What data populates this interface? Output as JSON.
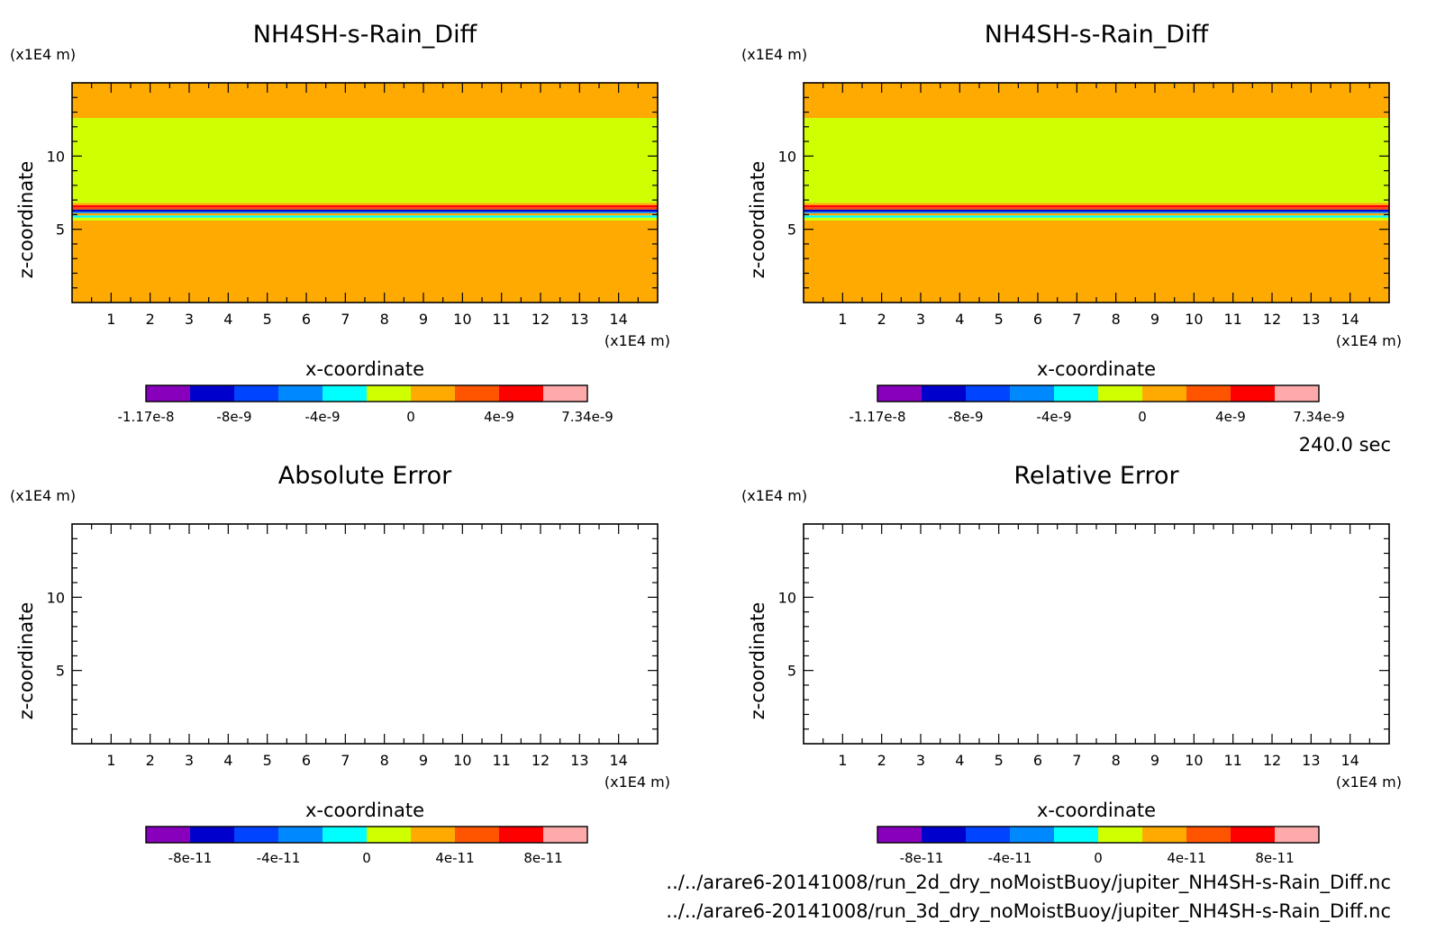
{
  "time_label": "240.0 sec",
  "files": [
    "../../arare6-20141008/run_2d_dry_noMoistBuoy/jupiter_NH4SH-s-Rain_Diff.nc",
    "../../arare6-20141008/run_3d_dry_noMoistBuoy/jupiter_NH4SH-s-Rain_Diff.nc"
  ],
  "chart_data": [
    {
      "type": "heatmap",
      "title": "NH4SH-s-Rain_Diff",
      "xlabel": "x-coordinate",
      "ylabel": "z-coordinate",
      "x_unit": "(x1E4 m)",
      "y_unit": "(x1E4 m)",
      "xlim": [
        0,
        15
      ],
      "ylim": [
        0,
        15
      ],
      "xticks": [
        1,
        2,
        3,
        4,
        5,
        6,
        7,
        8,
        9,
        10,
        11,
        12,
        13,
        14
      ],
      "yticks": [
        5,
        10
      ],
      "bands": [
        {
          "z0": 0,
          "z1": 5.6,
          "color": "#ffaa00",
          "value": "0 to 2e-9"
        },
        {
          "z0": 5.6,
          "z1": 5.8,
          "color": "#cfff00",
          "value": "-2e-9 to 0"
        },
        {
          "z0": 5.8,
          "z1": 5.95,
          "color": "#00ffff",
          "value": "-4e-9 to -2e-9"
        },
        {
          "z0": 5.95,
          "z1": 6.1,
          "color": "#ffaa00",
          "value": "0 to 2e-9"
        },
        {
          "z0": 6.1,
          "z1": 6.2,
          "color": "#0088ff",
          "value": "-6e-9 to -4e-9"
        },
        {
          "z0": 6.2,
          "z1": 6.35,
          "color": "#0000cc",
          "value": "-1e-8 to -8e-9"
        },
        {
          "z0": 6.35,
          "z1": 6.5,
          "color": "#ff4400",
          "value": "2e-9 to 4e-9"
        },
        {
          "z0": 6.5,
          "z1": 6.65,
          "color": "#ff0000",
          "value": "4e-9 to 6e-9"
        },
        {
          "z0": 6.65,
          "z1": 6.8,
          "color": "#ffaa00",
          "value": "0 to 2e-9"
        },
        {
          "z0": 6.8,
          "z1": 12.6,
          "color": "#cfff00",
          "value": "-2e-9 to 0"
        },
        {
          "z0": 12.6,
          "z1": 15,
          "color": "#ffaa00",
          "value": "0 to 2e-9"
        }
      ],
      "colorbar": {
        "colors": [
          "#8800bb",
          "#0000cc",
          "#0044ff",
          "#0088ff",
          "#00ffff",
          "#cfff00",
          "#ffaa00",
          "#ff5500",
          "#ff0000",
          "#ffaaaa"
        ],
        "tick_labels": [
          "-1.17e-8",
          "-8e-9",
          "-4e-9",
          "0",
          "4e-9",
          "7.34e-9"
        ]
      }
    },
    {
      "type": "heatmap",
      "title": "NH4SH-s-Rain_Diff",
      "xlabel": "x-coordinate",
      "ylabel": "z-coordinate",
      "x_unit": "(x1E4 m)",
      "y_unit": "(x1E4 m)",
      "xlim": [
        0,
        15
      ],
      "ylim": [
        0,
        15
      ],
      "xticks": [
        1,
        2,
        3,
        4,
        5,
        6,
        7,
        8,
        9,
        10,
        11,
        12,
        13,
        14
      ],
      "yticks": [
        5,
        10
      ],
      "bands": [
        {
          "z0": 0,
          "z1": 5.6,
          "color": "#ffaa00",
          "value": "0 to 2e-9"
        },
        {
          "z0": 5.6,
          "z1": 5.8,
          "color": "#cfff00",
          "value": "-2e-9 to 0"
        },
        {
          "z0": 5.8,
          "z1": 5.95,
          "color": "#00ffff",
          "value": "-4e-9 to -2e-9"
        },
        {
          "z0": 5.95,
          "z1": 6.1,
          "color": "#ffaa00",
          "value": "0 to 2e-9"
        },
        {
          "z0": 6.1,
          "z1": 6.2,
          "color": "#0088ff",
          "value": "-6e-9 to -4e-9"
        },
        {
          "z0": 6.2,
          "z1": 6.35,
          "color": "#0000cc",
          "value": "-1e-8 to -8e-9"
        },
        {
          "z0": 6.35,
          "z1": 6.5,
          "color": "#ff4400",
          "value": "2e-9 to 4e-9"
        },
        {
          "z0": 6.5,
          "z1": 6.65,
          "color": "#ff0000",
          "value": "4e-9 to 6e-9"
        },
        {
          "z0": 6.65,
          "z1": 6.8,
          "color": "#ffaa00",
          "value": "0 to 2e-9"
        },
        {
          "z0": 6.8,
          "z1": 12.6,
          "color": "#cfff00",
          "value": "-2e-9 to 0"
        },
        {
          "z0": 12.6,
          "z1": 15,
          "color": "#ffaa00",
          "value": "0 to 2e-9"
        }
      ],
      "colorbar": {
        "colors": [
          "#8800bb",
          "#0000cc",
          "#0044ff",
          "#0088ff",
          "#00ffff",
          "#cfff00",
          "#ffaa00",
          "#ff5500",
          "#ff0000",
          "#ffaaaa"
        ],
        "tick_labels": [
          "-1.17e-8",
          "-8e-9",
          "-4e-9",
          "0",
          "4e-9",
          "7.34e-9"
        ]
      }
    },
    {
      "type": "heatmap",
      "title": "Absolute Error",
      "xlabel": "x-coordinate",
      "ylabel": "z-coordinate",
      "x_unit": "(x1E4 m)",
      "y_unit": "(x1E4 m)",
      "xlim": [
        0,
        15
      ],
      "ylim": [
        0,
        15
      ],
      "xticks": [
        1,
        2,
        3,
        4,
        5,
        6,
        7,
        8,
        9,
        10,
        11,
        12,
        13,
        14
      ],
      "yticks": [
        5,
        10
      ],
      "bands": [],
      "colorbar": {
        "colors": [
          "#8800bb",
          "#0000cc",
          "#0044ff",
          "#0088ff",
          "#00ffff",
          "#cfff00",
          "#ffaa00",
          "#ff5500",
          "#ff0000",
          "#ffaaaa"
        ],
        "tick_labels": [
          "-8e-11",
          "-4e-11",
          "0",
          "4e-11",
          "8e-11"
        ]
      }
    },
    {
      "type": "heatmap",
      "title": "Relative Error",
      "xlabel": "x-coordinate",
      "ylabel": "z-coordinate",
      "x_unit": "(x1E4 m)",
      "y_unit": "(x1E4 m)",
      "xlim": [
        0,
        15
      ],
      "ylim": [
        0,
        15
      ],
      "xticks": [
        1,
        2,
        3,
        4,
        5,
        6,
        7,
        8,
        9,
        10,
        11,
        12,
        13,
        14
      ],
      "yticks": [
        5,
        10
      ],
      "bands": [],
      "colorbar": {
        "colors": [
          "#8800bb",
          "#0000cc",
          "#0044ff",
          "#0088ff",
          "#00ffff",
          "#cfff00",
          "#ffaa00",
          "#ff5500",
          "#ff0000",
          "#ffaaaa"
        ],
        "tick_labels": [
          "-8e-11",
          "-4e-11",
          "0",
          "4e-11",
          "8e-11"
        ]
      }
    }
  ]
}
